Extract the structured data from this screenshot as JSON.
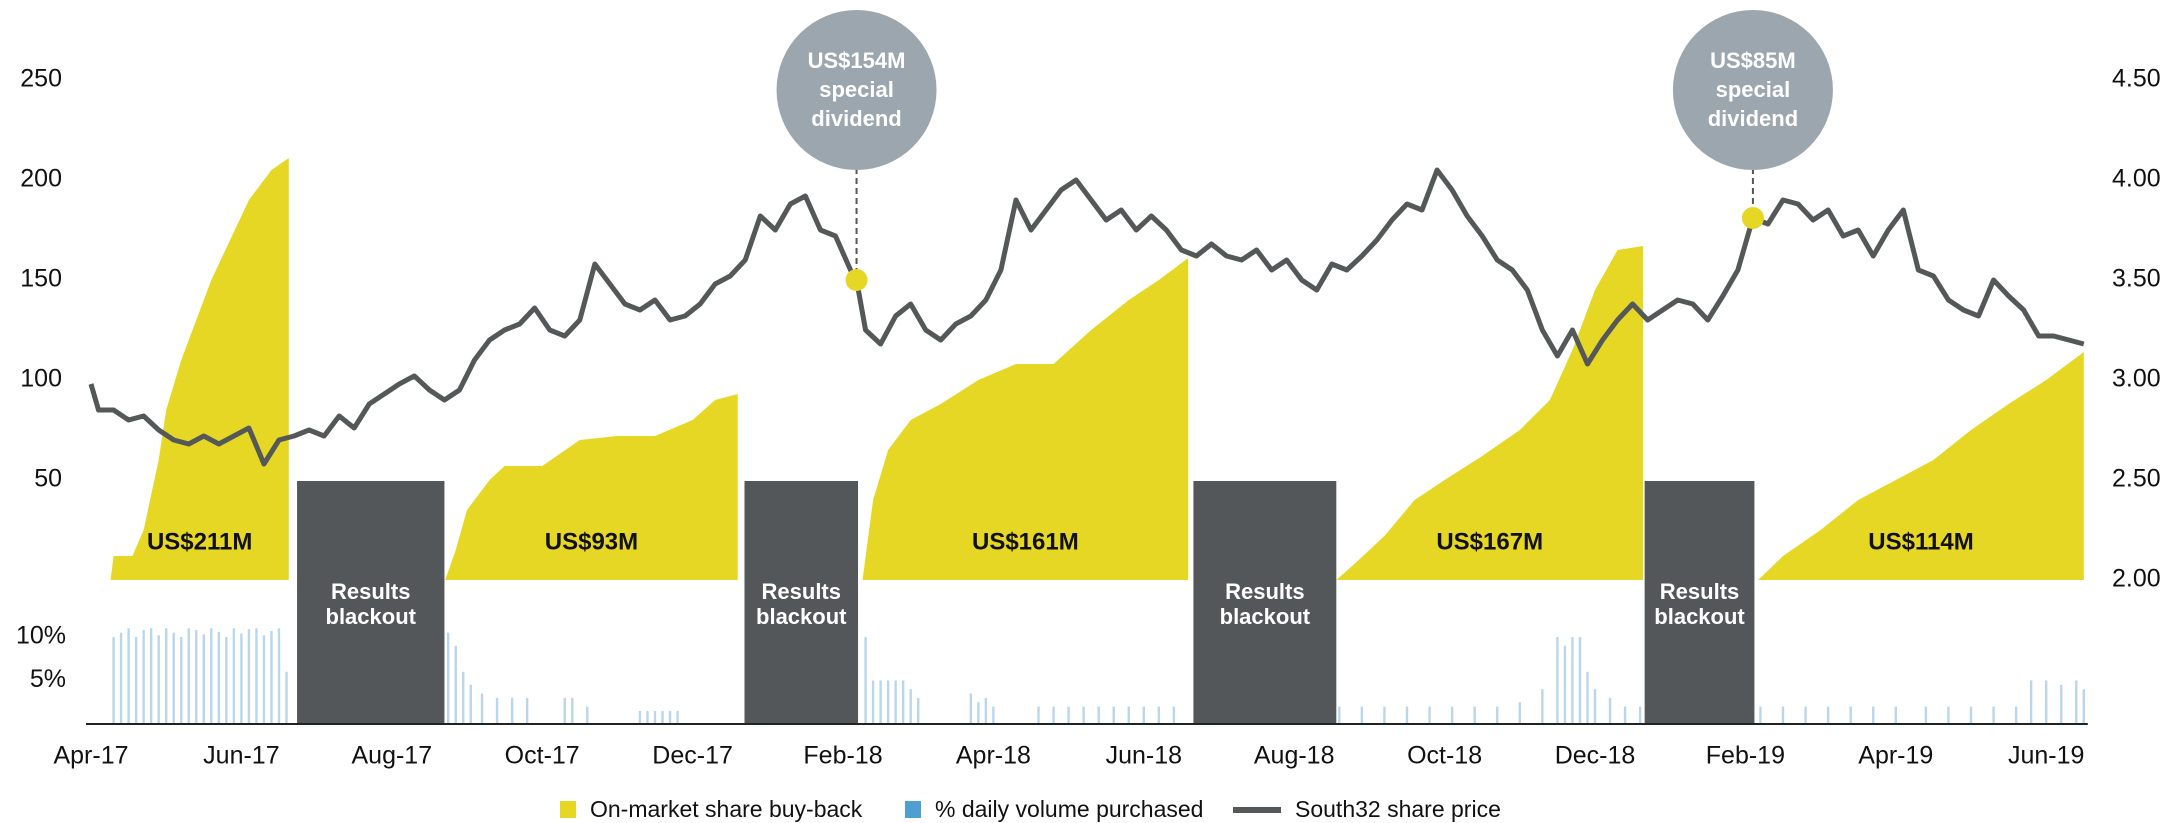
{
  "chart_data": {
    "type": "combo",
    "xlim": [
      0,
      26.6
    ],
    "xticks": [
      {
        "value": 0,
        "label": "Apr-17"
      },
      {
        "value": 2,
        "label": "Jun-17"
      },
      {
        "value": 4,
        "label": "Aug-17"
      },
      {
        "value": 6,
        "label": "Oct-17"
      },
      {
        "value": 8,
        "label": "Dec-17"
      },
      {
        "value": 10,
        "label": "Feb-18"
      },
      {
        "value": 12,
        "label": "Apr-18"
      },
      {
        "value": 14,
        "label": "Jun-18"
      },
      {
        "value": 16,
        "label": "Aug-18"
      },
      {
        "value": 18,
        "label": "Oct-18"
      },
      {
        "value": 20,
        "label": "Dec-18"
      },
      {
        "value": 22,
        "label": "Feb-19"
      },
      {
        "value": 24,
        "label": "Apr-19"
      },
      {
        "value": 26,
        "label": "Jun-19"
      }
    ],
    "ylim": [
      0,
      250
    ],
    "yticks": [
      50,
      100,
      150,
      200,
      250
    ],
    "y2lim": [
      2,
      4.5
    ],
    "y2ticks": [
      {
        "value": 2,
        "label": "2.00"
      },
      {
        "value": 2.5,
        "label": "2.50"
      },
      {
        "value": 3,
        "label": "3.00"
      },
      {
        "value": 3.5,
        "label": "3.50"
      },
      {
        "value": 4,
        "label": "4.00"
      },
      {
        "value": 4.5,
        "label": "4.50"
      }
    ],
    "y3lim": [
      0,
      10
    ],
    "y3ticks": [
      {
        "value": 5,
        "label": "5%"
      },
      {
        "value": 10,
        "label": "10%"
      }
    ],
    "series": [
      {
        "name": "On-market share buy-back",
        "type": "area",
        "axis": "y",
        "color": "#e6d725",
        "x": [
          0.26,
          0.3,
          0.55,
          0.7,
          0.9,
          1.0,
          1.2,
          1.4,
          1.6,
          1.85,
          2.1,
          2.4,
          2.63,
          null,
          4.71,
          4.85,
          5.0,
          5.3,
          5.5,
          6.0,
          6.5,
          7.0,
          7.5,
          8.0,
          8.3,
          8.6,
          null,
          10.26,
          10.4,
          10.6,
          10.9,
          11.3,
          11.8,
          12.3,
          12.8,
          13.3,
          13.8,
          14.2,
          14.59,
          null,
          16.56,
          16.8,
          17.2,
          17.6,
          18.0,
          18.5,
          19.0,
          19.4,
          19.7,
          20.0,
          20.3,
          20.64,
          null,
          22.17,
          22.5,
          23.0,
          23.5,
          24.0,
          24.5,
          25.0,
          25.5,
          26.0,
          26.5
        ],
        "values": [
          0,
          12,
          12,
          25,
          60,
          85,
          110,
          130,
          150,
          170,
          190,
          205,
          211,
          null,
          0,
          15,
          35,
          50,
          57,
          57,
          70,
          72,
          72,
          80,
          90,
          93,
          null,
          0,
          40,
          65,
          80,
          88,
          100,
          108,
          108,
          125,
          140,
          150,
          161,
          null,
          0,
          8,
          22,
          40,
          50,
          62,
          75,
          90,
          115,
          145,
          165,
          167,
          null,
          0,
          12,
          25,
          40,
          50,
          60,
          75,
          88,
          100,
          114
        ],
        "value_labels": [
          null,
          null,
          null,
          null,
          null,
          null,
          null,
          null,
          null,
          null,
          null,
          null,
          "US$211M",
          null,
          null,
          null,
          null,
          null,
          null,
          null,
          null,
          null,
          null,
          null,
          null,
          "US$93M",
          null,
          null,
          null,
          null,
          null,
          null,
          null,
          null,
          null,
          null,
          null,
          null,
          "US$161M",
          null,
          null,
          null,
          null,
          null,
          null,
          null,
          null,
          null,
          null,
          null,
          null,
          "US$167M",
          null,
          null,
          null,
          null,
          null,
          null,
          null,
          null,
          null,
          null,
          "US$114M"
        ]
      },
      {
        "name": "% daily volume purchased",
        "type": "bar",
        "axis": "y3",
        "color": "#4f9fd2",
        "bar_color": "#b9d6ec",
        "x": [
          0.3,
          0.4,
          0.5,
          0.6,
          0.7,
          0.8,
          0.9,
          1.0,
          1.1,
          1.2,
          1.3,
          1.4,
          1.5,
          1.6,
          1.7,
          1.8,
          1.9,
          2.0,
          2.1,
          2.2,
          2.3,
          2.4,
          2.5,
          2.6,
          4.75,
          4.85,
          4.95,
          5.05,
          5.2,
          5.4,
          5.6,
          5.8,
          6.3,
          6.4,
          6.6,
          7.3,
          7.4,
          7.5,
          7.6,
          7.7,
          7.8,
          10.3,
          10.4,
          10.5,
          10.6,
          10.7,
          10.8,
          10.9,
          11.0,
          11.7,
          11.8,
          11.9,
          12.0,
          12.6,
          12.8,
          13.0,
          13.2,
          13.4,
          13.6,
          13.8,
          14.0,
          14.2,
          14.4,
          16.6,
          16.9,
          17.2,
          17.5,
          17.8,
          18.1,
          18.4,
          18.7,
          19.0,
          19.3,
          19.5,
          19.6,
          19.7,
          19.8,
          19.9,
          20.0,
          20.2,
          20.4,
          20.6,
          22.2,
          22.5,
          22.8,
          23.1,
          23.4,
          23.7,
          24.0,
          24.4,
          24.7,
          25.0,
          25.3,
          25.6,
          25.8,
          26.0,
          26.2,
          26.4,
          26.5
        ],
        "values": [
          10,
          10.5,
          11,
          10,
          10.8,
          11,
          10.2,
          11,
          10.5,
          10,
          11,
          10.8,
          10.3,
          11,
          10.6,
          10,
          11,
          10.4,
          10.9,
          11,
          10.2,
          10.7,
          11,
          6,
          10.5,
          9,
          6,
          4.5,
          3.5,
          3,
          3,
          3,
          3,
          3,
          2,
          1.5,
          1.5,
          1.5,
          1.5,
          1.5,
          1.5,
          10,
          5,
          5,
          5,
          5,
          5,
          4,
          3,
          3.5,
          2.5,
          3,
          2,
          2,
          2,
          2,
          2,
          2,
          2,
          2,
          2,
          2,
          2,
          2,
          2,
          2,
          2,
          2,
          2,
          2,
          2,
          2.5,
          4,
          10,
          9,
          10,
          10,
          6,
          4,
          3,
          2,
          2,
          2,
          2,
          2,
          2,
          2,
          2,
          2,
          2,
          2,
          2,
          2,
          2,
          5,
          5,
          4.5,
          5,
          4
        ]
      },
      {
        "name": "South32 share price",
        "type": "line",
        "axis": "y2",
        "color": "#555859",
        "x": [
          0,
          0.1,
          0.3,
          0.5,
          0.7,
          0.9,
          1.1,
          1.3,
          1.5,
          1.7,
          1.9,
          2.1,
          2.3,
          2.5,
          2.7,
          2.9,
          3.1,
          3.3,
          3.5,
          3.7,
          3.9,
          4.1,
          4.3,
          4.5,
          4.7,
          4.9,
          5.1,
          5.3,
          5.5,
          5.7,
          5.9,
          6.1,
          6.3,
          6.5,
          6.7,
          6.9,
          7.1,
          7.3,
          7.5,
          7.7,
          7.9,
          8.1,
          8.3,
          8.5,
          8.7,
          8.9,
          9.1,
          9.3,
          9.5,
          9.7,
          9.9,
          10.1,
          10.18,
          10.3,
          10.5,
          10.7,
          10.9,
          11.1,
          11.3,
          11.5,
          11.7,
          11.9,
          12.1,
          12.3,
          12.5,
          12.7,
          12.9,
          13.1,
          13.3,
          13.5,
          13.7,
          13.9,
          14.1,
          14.3,
          14.5,
          14.7,
          14.9,
          15.1,
          15.3,
          15.5,
          15.7,
          15.9,
          16.1,
          16.3,
          16.5,
          16.7,
          16.9,
          17.1,
          17.3,
          17.5,
          17.7,
          17.9,
          18.1,
          18.3,
          18.5,
          18.7,
          18.9,
          19.1,
          19.3,
          19.5,
          19.7,
          19.9,
          20.1,
          20.3,
          20.5,
          20.7,
          20.9,
          21.1,
          21.3,
          21.5,
          21.7,
          21.9,
          22.1,
          22.3,
          22.5,
          22.7,
          22.9,
          23.1,
          23.3,
          23.5,
          23.7,
          23.9,
          24.1,
          24.3,
          24.5,
          24.7,
          24.9,
          25.1,
          25.3,
          25.5,
          25.7,
          25.9,
          26.1,
          26.3,
          26.5
        ],
        "values": [
          2.98,
          2.85,
          2.85,
          2.8,
          2.82,
          2.75,
          2.7,
          2.68,
          2.72,
          2.68,
          2.72,
          2.76,
          2.58,
          2.7,
          2.72,
          2.75,
          2.72,
          2.82,
          2.76,
          2.88,
          2.93,
          2.98,
          3.02,
          2.95,
          2.9,
          2.95,
          3.1,
          3.2,
          3.25,
          3.28,
          3.36,
          3.25,
          3.22,
          3.3,
          3.58,
          3.48,
          3.38,
          3.35,
          3.4,
          3.3,
          3.32,
          3.38,
          3.48,
          3.52,
          3.6,
          3.82,
          3.75,
          3.88,
          3.92,
          3.75,
          3.72,
          3.55,
          3.5,
          3.25,
          3.18,
          3.32,
          3.38,
          3.25,
          3.2,
          3.28,
          3.32,
          3.4,
          3.55,
          3.9,
          3.75,
          3.85,
          3.95,
          4.0,
          3.9,
          3.8,
          3.85,
          3.75,
          3.82,
          3.75,
          3.65,
          3.62,
          3.68,
          3.62,
          3.6,
          3.65,
          3.55,
          3.6,
          3.5,
          3.45,
          3.58,
          3.55,
          3.62,
          3.7,
          3.8,
          3.88,
          3.85,
          4.05,
          3.95,
          3.82,
          3.72,
          3.6,
          3.55,
          3.45,
          3.25,
          3.12,
          3.25,
          3.08,
          3.2,
          3.3,
          3.38,
          3.3,
          3.35,
          3.4,
          3.38,
          3.3,
          3.42,
          3.55,
          3.81,
          3.78,
          3.9,
          3.88,
          3.8,
          3.85,
          3.72,
          3.75,
          3.62,
          3.75,
          3.85,
          3.55,
          3.52,
          3.4,
          3.35,
          3.32,
          3.5,
          3.42,
          3.35,
          3.22,
          3.22,
          3.2,
          3.18
        ]
      }
    ],
    "blackouts": [
      {
        "label": [
          "Results",
          "blackout"
        ],
        "start": 2.74,
        "end": 4.7
      },
      {
        "label": [
          "Results",
          "blackout"
        ],
        "start": 8.69,
        "end": 10.2
      },
      {
        "label": [
          "Results",
          "blackout"
        ],
        "start": 14.66,
        "end": 16.56
      },
      {
        "label": [
          "Results",
          "blackout"
        ],
        "start": 20.66,
        "end": 22.12
      }
    ],
    "dividends": [
      {
        "label": [
          "US$154M",
          "special",
          "dividend"
        ],
        "x": 10.18,
        "value": 3.5,
        "color": "#9ca6ae"
      },
      {
        "label": [
          "US$85M",
          "special",
          "dividend"
        ],
        "x": 22.1,
        "value": 3.81,
        "color": "#9ca6ae"
      }
    ]
  }
}
